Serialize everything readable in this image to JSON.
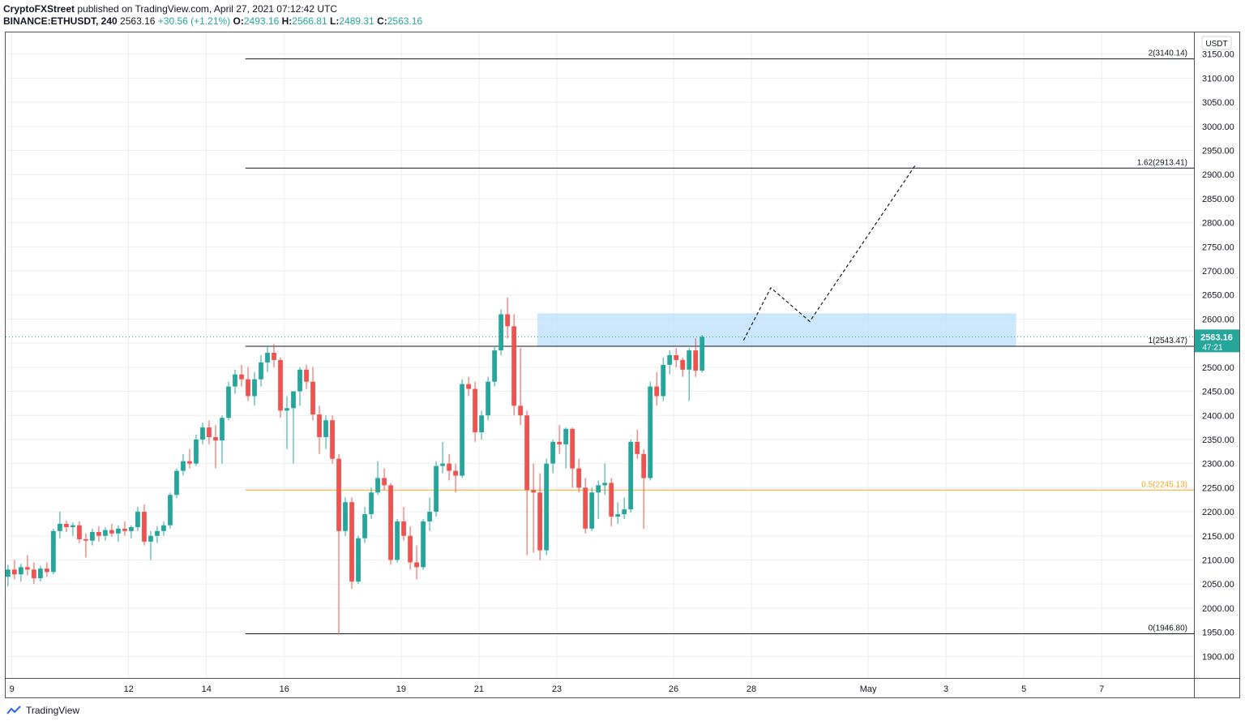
{
  "header": {
    "publisher": "CryptoFXStreet",
    "published_text": "published on TradingView.com, April 27, 2021 07:12:42 UTC",
    "symbol": "BINANCE:ETHUSDT, 240",
    "last": "2563.16",
    "change": "+30.56 (+1.21%)",
    "o_label": "O:",
    "o_value": "2493.16",
    "h_label": "H:",
    "h_value": "2566.81",
    "l_label": "L:",
    "l_value": "2489.31",
    "c_label": "C:",
    "c_value": "2563.16"
  },
  "footer": {
    "brand": "TradingView"
  },
  "colors": {
    "up": "#26a69a",
    "down": "#ef5350",
    "fib_half": "#f5a623",
    "zone": "#bbdefb",
    "grid": "#eeeeee"
  },
  "chart_data": {
    "type": "candlestick",
    "currency_label": "USDT",
    "ylim": [
      1855,
      3195
    ],
    "y_ticks": [
      1900,
      1950,
      2000,
      2050,
      2100,
      2150,
      2200,
      2250,
      2300,
      2350,
      2400,
      2450,
      2500,
      2550,
      2600,
      2650,
      2700,
      2750,
      2800,
      2850,
      2900,
      2950,
      3000,
      3050,
      3100,
      3150
    ],
    "x_range_days": [
      8.84,
      39.37
    ],
    "x_ticks": [
      {
        "day": 9,
        "label": "9"
      },
      {
        "day": 12,
        "label": "12"
      },
      {
        "day": 14,
        "label": "14"
      },
      {
        "day": 16,
        "label": "16"
      },
      {
        "day": 19,
        "label": "19"
      },
      {
        "day": 21,
        "label": "21"
      },
      {
        "day": 23,
        "label": "23"
      },
      {
        "day": 26,
        "label": "26"
      },
      {
        "day": 28,
        "label": "28"
      },
      {
        "day": 31,
        "label": "May"
      },
      {
        "day": 33,
        "label": "3"
      },
      {
        "day": 35,
        "label": "5"
      },
      {
        "day": 37,
        "label": "7"
      }
    ],
    "last_price": {
      "value": 2563.16,
      "label": "2563.16",
      "countdown": "47:21"
    },
    "fib_levels": [
      {
        "label": "2(3140.14)",
        "value": 3140.14,
        "color": "#131722"
      },
      {
        "label": "1.62(2913.41)",
        "value": 2913.41,
        "color": "#131722"
      },
      {
        "label": "1(2543.47)",
        "value": 2543.47,
        "color": "#131722"
      },
      {
        "label": "0.5(2245.13)",
        "value": 2245.13,
        "color": "#f5a623"
      },
      {
        "label": "0(1946.80)",
        "value": 1946.8,
        "color": "#131722"
      }
    ],
    "fib_start_day": 15.0,
    "supply_zone": {
      "day_start": 22.5,
      "day_end": 34.8,
      "low": 2543.47,
      "high": 2612
    },
    "projection_path": [
      {
        "day": 27.8,
        "price": 2556
      },
      {
        "day": 28.5,
        "price": 2665
      },
      {
        "day": 29.5,
        "price": 2595
      },
      {
        "day": 32.2,
        "price": 2918
      }
    ],
    "candles": [
      {
        "o": 2065,
        "h": 2090,
        "l": 2045,
        "c": 2080
      },
      {
        "o": 2080,
        "h": 2100,
        "l": 2060,
        "c": 2070
      },
      {
        "o": 2070,
        "h": 2092,
        "l": 2055,
        "c": 2085
      },
      {
        "o": 2085,
        "h": 2110,
        "l": 2068,
        "c": 2080
      },
      {
        "o": 2080,
        "h": 2095,
        "l": 2050,
        "c": 2062
      },
      {
        "o": 2062,
        "h": 2088,
        "l": 2055,
        "c": 2082
      },
      {
        "o": 2082,
        "h": 2095,
        "l": 2065,
        "c": 2075
      },
      {
        "o": 2075,
        "h": 2165,
        "l": 2070,
        "c": 2160
      },
      {
        "o": 2160,
        "h": 2200,
        "l": 2145,
        "c": 2175
      },
      {
        "o": 2175,
        "h": 2182,
        "l": 2158,
        "c": 2168
      },
      {
        "o": 2168,
        "h": 2178,
        "l": 2150,
        "c": 2172
      },
      {
        "o": 2172,
        "h": 2180,
        "l": 2135,
        "c": 2143
      },
      {
        "o": 2143,
        "h": 2155,
        "l": 2105,
        "c": 2140
      },
      {
        "o": 2140,
        "h": 2165,
        "l": 2130,
        "c": 2158
      },
      {
        "o": 2158,
        "h": 2170,
        "l": 2138,
        "c": 2150
      },
      {
        "o": 2150,
        "h": 2168,
        "l": 2140,
        "c": 2162
      },
      {
        "o": 2162,
        "h": 2175,
        "l": 2148,
        "c": 2155
      },
      {
        "o": 2155,
        "h": 2172,
        "l": 2138,
        "c": 2165
      },
      {
        "o": 2165,
        "h": 2180,
        "l": 2150,
        "c": 2160
      },
      {
        "o": 2160,
        "h": 2172,
        "l": 2145,
        "c": 2168
      },
      {
        "o": 2168,
        "h": 2210,
        "l": 2160,
        "c": 2200
      },
      {
        "o": 2200,
        "h": 2215,
        "l": 2130,
        "c": 2138
      },
      {
        "o": 2138,
        "h": 2160,
        "l": 2100,
        "c": 2150
      },
      {
        "o": 2150,
        "h": 2170,
        "l": 2135,
        "c": 2160
      },
      {
        "o": 2160,
        "h": 2180,
        "l": 2150,
        "c": 2172
      },
      {
        "o": 2172,
        "h": 2240,
        "l": 2165,
        "c": 2235
      },
      {
        "o": 2235,
        "h": 2290,
        "l": 2228,
        "c": 2285
      },
      {
        "o": 2285,
        "h": 2320,
        "l": 2275,
        "c": 2305
      },
      {
        "o": 2305,
        "h": 2330,
        "l": 2290,
        "c": 2300
      },
      {
        "o": 2300,
        "h": 2360,
        "l": 2295,
        "c": 2350
      },
      {
        "o": 2350,
        "h": 2385,
        "l": 2340,
        "c": 2375
      },
      {
        "o": 2375,
        "h": 2390,
        "l": 2340,
        "c": 2355
      },
      {
        "o": 2355,
        "h": 2380,
        "l": 2290,
        "c": 2348
      },
      {
        "o": 2348,
        "h": 2400,
        "l": 2300,
        "c": 2395
      },
      {
        "o": 2395,
        "h": 2470,
        "l": 2390,
        "c": 2460
      },
      {
        "o": 2460,
        "h": 2495,
        "l": 2445,
        "c": 2485
      },
      {
        "o": 2485,
        "h": 2505,
        "l": 2460,
        "c": 2475
      },
      {
        "o": 2475,
        "h": 2500,
        "l": 2430,
        "c": 2440
      },
      {
        "o": 2440,
        "h": 2490,
        "l": 2420,
        "c": 2475
      },
      {
        "o": 2475,
        "h": 2525,
        "l": 2460,
        "c": 2510
      },
      {
        "o": 2510,
        "h": 2545,
        "l": 2490,
        "c": 2530
      },
      {
        "o": 2530,
        "h": 2548,
        "l": 2500,
        "c": 2515
      },
      {
        "o": 2515,
        "h": 2520,
        "l": 2395,
        "c": 2410
      },
      {
        "o": 2410,
        "h": 2440,
        "l": 2330,
        "c": 2415
      },
      {
        "o": 2415,
        "h": 2450,
        "l": 2300,
        "c": 2450
      },
      {
        "o": 2450,
        "h": 2500,
        "l": 2420,
        "c": 2495
      },
      {
        "o": 2495,
        "h": 2505,
        "l": 2455,
        "c": 2470
      },
      {
        "o": 2470,
        "h": 2500,
        "l": 2390,
        "c": 2402
      },
      {
        "o": 2402,
        "h": 2420,
        "l": 2320,
        "c": 2355
      },
      {
        "o": 2355,
        "h": 2400,
        "l": 2330,
        "c": 2390
      },
      {
        "o": 2390,
        "h": 2400,
        "l": 2300,
        "c": 2310
      },
      {
        "o": 2310,
        "h": 2320,
        "l": 1945,
        "c": 2160
      },
      {
        "o": 2160,
        "h": 2230,
        "l": 2150,
        "c": 2220
      },
      {
        "o": 2220,
        "h": 2230,
        "l": 2040,
        "c": 2055
      },
      {
        "o": 2055,
        "h": 2150,
        "l": 2050,
        "c": 2145
      },
      {
        "o": 2145,
        "h": 2210,
        "l": 2135,
        "c": 2195
      },
      {
        "o": 2195,
        "h": 2250,
        "l": 2185,
        "c": 2240
      },
      {
        "o": 2240,
        "h": 2305,
        "l": 2235,
        "c": 2270
      },
      {
        "o": 2270,
        "h": 2290,
        "l": 2245,
        "c": 2255
      },
      {
        "o": 2255,
        "h": 2260,
        "l": 2090,
        "c": 2100
      },
      {
        "o": 2100,
        "h": 2185,
        "l": 2095,
        "c": 2180
      },
      {
        "o": 2180,
        "h": 2210,
        "l": 2140,
        "c": 2150
      },
      {
        "o": 2150,
        "h": 2170,
        "l": 2080,
        "c": 2095
      },
      {
        "o": 2095,
        "h": 2130,
        "l": 2060,
        "c": 2085
      },
      {
        "o": 2085,
        "h": 2185,
        "l": 2080,
        "c": 2180
      },
      {
        "o": 2180,
        "h": 2230,
        "l": 2160,
        "c": 2200
      },
      {
        "o": 2200,
        "h": 2305,
        "l": 2190,
        "c": 2295
      },
      {
        "o": 2295,
        "h": 2345,
        "l": 2280,
        "c": 2300
      },
      {
        "o": 2300,
        "h": 2320,
        "l": 2265,
        "c": 2285
      },
      {
        "o": 2285,
        "h": 2300,
        "l": 2240,
        "c": 2275
      },
      {
        "o": 2275,
        "h": 2475,
        "l": 2270,
        "c": 2465
      },
      {
        "o": 2465,
        "h": 2480,
        "l": 2440,
        "c": 2455
      },
      {
        "o": 2455,
        "h": 2470,
        "l": 2345,
        "c": 2365
      },
      {
        "o": 2365,
        "h": 2410,
        "l": 2350,
        "c": 2400
      },
      {
        "o": 2400,
        "h": 2480,
        "l": 2390,
        "c": 2470
      },
      {
        "o": 2470,
        "h": 2545,
        "l": 2460,
        "c": 2535
      },
      {
        "o": 2535,
        "h": 2620,
        "l": 2525,
        "c": 2610
      },
      {
        "o": 2610,
        "h": 2645,
        "l": 2560,
        "c": 2585
      },
      {
        "o": 2585,
        "h": 2610,
        "l": 2400,
        "c": 2420
      },
      {
        "o": 2420,
        "h": 2540,
        "l": 2380,
        "c": 2400
      },
      {
        "o": 2400,
        "h": 2410,
        "l": 2110,
        "c": 2245
      },
      {
        "o": 2245,
        "h": 2300,
        "l": 2115,
        "c": 2240
      },
      {
        "o": 2240,
        "h": 2280,
        "l": 2100,
        "c": 2120
      },
      {
        "o": 2120,
        "h": 2310,
        "l": 2110,
        "c": 2300
      },
      {
        "o": 2300,
        "h": 2350,
        "l": 2280,
        "c": 2345
      },
      {
        "o": 2345,
        "h": 2380,
        "l": 2320,
        "c": 2340
      },
      {
        "o": 2340,
        "h": 2375,
        "l": 2290,
        "c": 2372
      },
      {
        "o": 2372,
        "h": 2375,
        "l": 2250,
        "c": 2290
      },
      {
        "o": 2290,
        "h": 2310,
        "l": 2240,
        "c": 2250
      },
      {
        "o": 2250,
        "h": 2270,
        "l": 2155,
        "c": 2165
      },
      {
        "o": 2165,
        "h": 2250,
        "l": 2160,
        "c": 2240
      },
      {
        "o": 2240,
        "h": 2265,
        "l": 2185,
        "c": 2255
      },
      {
        "o": 2255,
        "h": 2300,
        "l": 2235,
        "c": 2260
      },
      {
        "o": 2260,
        "h": 2270,
        "l": 2170,
        "c": 2190
      },
      {
        "o": 2190,
        "h": 2220,
        "l": 2175,
        "c": 2195
      },
      {
        "o": 2195,
        "h": 2230,
        "l": 2185,
        "c": 2205
      },
      {
        "o": 2205,
        "h": 2350,
        "l": 2198,
        "c": 2345
      },
      {
        "o": 2345,
        "h": 2370,
        "l": 2310,
        "c": 2320
      },
      {
        "o": 2320,
        "h": 2330,
        "l": 2165,
        "c": 2270
      },
      {
        "o": 2270,
        "h": 2470,
        "l": 2265,
        "c": 2460
      },
      {
        "o": 2460,
        "h": 2490,
        "l": 2420,
        "c": 2440
      },
      {
        "o": 2440,
        "h": 2520,
        "l": 2430,
        "c": 2505
      },
      {
        "o": 2505,
        "h": 2535,
        "l": 2485,
        "c": 2525
      },
      {
        "o": 2525,
        "h": 2540,
        "l": 2500,
        "c": 2515
      },
      {
        "o": 2515,
        "h": 2520,
        "l": 2480,
        "c": 2495
      },
      {
        "o": 2495,
        "h": 2540,
        "l": 2430,
        "c": 2535
      },
      {
        "o": 2535,
        "h": 2560,
        "l": 2480,
        "c": 2493
      },
      {
        "o": 2493,
        "h": 2567,
        "l": 2489,
        "c": 2563
      }
    ]
  }
}
